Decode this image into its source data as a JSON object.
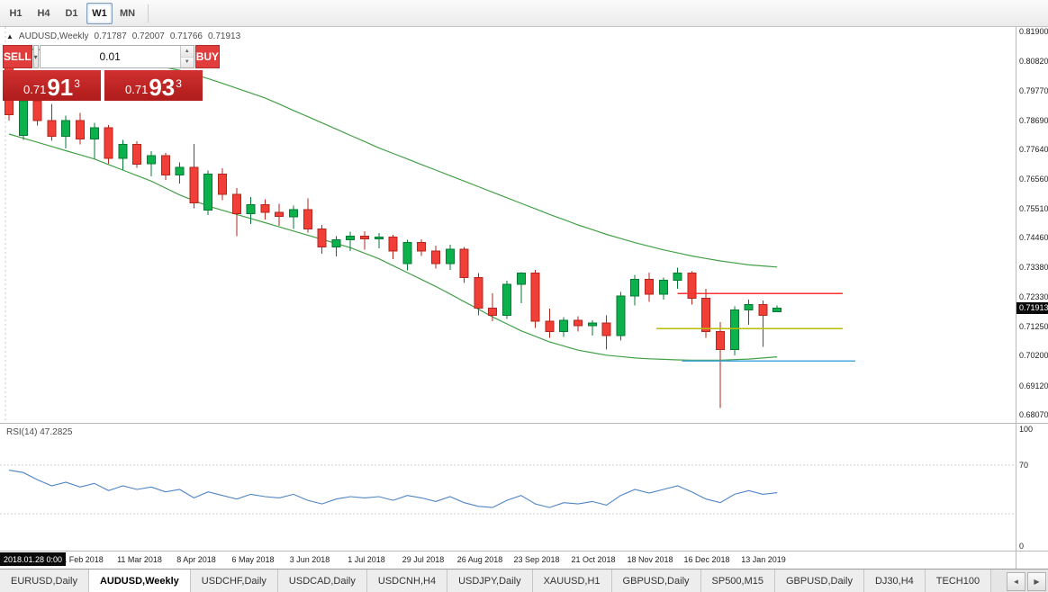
{
  "toolbar": {
    "timeframes": [
      {
        "label": "H1",
        "active": false
      },
      {
        "label": "H4",
        "active": false
      },
      {
        "label": "D1",
        "active": false
      },
      {
        "label": "W1",
        "active": true
      },
      {
        "label": "MN",
        "active": false
      }
    ]
  },
  "chart": {
    "header": {
      "marker": "▲",
      "symbol": "AUDUSD,Weekly",
      "open": "0.71787",
      "high": "0.72007",
      "low": "0.71766",
      "close": "0.71913"
    },
    "price_axis": [
      "0.81900",
      "0.80820",
      "0.79770",
      "0.78690",
      "0.77640",
      "0.76560",
      "0.75510",
      "0.74460",
      "0.73380",
      "0.72330",
      "0.71250",
      "0.70200",
      "0.69120",
      "0.68070"
    ],
    "price_badge": "0.71913",
    "rsi_label": "RSI(14) 47.2825",
    "rsi_axis": [
      "100",
      "70",
      "0"
    ],
    "date_badge": "2018.01.28 0:00",
    "date_axis": [
      "1 Feb 2018",
      "11 Mar 2018",
      "8 Apr 2018",
      "6 May 2018",
      "3 Jun 2018",
      "1 Jul 2018",
      "29 Jul 2018",
      "26 Aug 2018",
      "23 Sep 2018",
      "21 Oct 2018",
      "18 Nov 2018",
      "16 Dec 2018",
      "13 Jan 2019"
    ]
  },
  "trade_panel": {
    "sell_label": "SELL",
    "buy_label": "BUY",
    "lot_value": "0.01",
    "dropdown_glyph": "▾",
    "spin_up": "▲",
    "spin_down": "▼",
    "sell_price": {
      "small": "0.71",
      "big": "91",
      "sup": "3"
    },
    "buy_price": {
      "small": "0.71",
      "big": "93",
      "sup": "3"
    }
  },
  "tabs": {
    "items": [
      {
        "label": "EURUSD,Daily",
        "active": false
      },
      {
        "label": "AUDUSD,Weekly",
        "active": true
      },
      {
        "label": "USDCHF,Daily",
        "active": false
      },
      {
        "label": "USDCAD,Daily",
        "active": false
      },
      {
        "label": "USDCNH,H4",
        "active": false
      },
      {
        "label": "USDJPY,Daily",
        "active": false
      },
      {
        "label": "XAUUSD,H1",
        "active": false
      },
      {
        "label": "GBPUSD,Daily",
        "active": false
      },
      {
        "label": "SP500,M15",
        "active": false
      },
      {
        "label": "GBPUSD,Daily",
        "active": false
      },
      {
        "label": "DJ30,H4",
        "active": false
      },
      {
        "label": "TECH100",
        "active": false
      }
    ],
    "scroll_left": "◄",
    "scroll_right": "▶"
  },
  "colors": {
    "up": "#0cb04c",
    "up_border": "#067a33",
    "down": "#f13e36",
    "down_border": "#b3271f",
    "band": "#43a047",
    "rsi": "#4f84c4",
    "red_line": "#ff3232",
    "yellow_line": "#b8bd00",
    "blue_line": "#49a8e0",
    "badge_bg": "#0a0a0a"
  },
  "chart_data": {
    "type": "candlestick",
    "symbol": "AUDUSD",
    "timeframe": "Weekly",
    "current_price": 0.71913,
    "ohlc_current": {
      "open": 0.71787,
      "high": 0.72007,
      "low": 0.71766,
      "close": 0.71913
    },
    "price_range": {
      "min": 0.6807,
      "max": 0.819
    },
    "axis_ticks": [
      0.819,
      0.8082,
      0.7977,
      0.7869,
      0.7764,
      0.7656,
      0.7551,
      0.7446,
      0.7338,
      0.7233,
      0.7125,
      0.702,
      0.6912,
      0.6807
    ],
    "candles": [
      [
        0.809,
        0.8136,
        0.7868,
        0.789
      ],
      [
        0.7815,
        0.7952,
        0.7798,
        0.794
      ],
      [
        0.794,
        0.7963,
        0.785,
        0.7868
      ],
      [
        0.7868,
        0.7928,
        0.7795,
        0.7812
      ],
      [
        0.7812,
        0.7886,
        0.7768,
        0.7868
      ],
      [
        0.7868,
        0.7897,
        0.7782,
        0.7802
      ],
      [
        0.7802,
        0.786,
        0.773,
        0.7842
      ],
      [
        0.7842,
        0.7853,
        0.7712,
        0.7733
      ],
      [
        0.7733,
        0.7798,
        0.769,
        0.7782
      ],
      [
        0.7782,
        0.7794,
        0.7698,
        0.7712
      ],
      [
        0.7712,
        0.7758,
        0.7668,
        0.7742
      ],
      [
        0.7742,
        0.7752,
        0.7655,
        0.7672
      ],
      [
        0.7672,
        0.7718,
        0.7642,
        0.77
      ],
      [
        0.77,
        0.7784,
        0.7552,
        0.7572
      ],
      [
        0.7545,
        0.7688,
        0.7528,
        0.7676
      ],
      [
        0.7676,
        0.7696,
        0.7582,
        0.7603
      ],
      [
        0.7603,
        0.7625,
        0.7452,
        0.7532
      ],
      [
        0.7532,
        0.7592,
        0.7495,
        0.7565
      ],
      [
        0.7565,
        0.7585,
        0.7512,
        0.7538
      ],
      [
        0.7538,
        0.7568,
        0.7488,
        0.7522
      ],
      [
        0.7522,
        0.7562,
        0.7478,
        0.7548
      ],
      [
        0.7548,
        0.7587,
        0.7465,
        0.7478
      ],
      [
        0.7478,
        0.7492,
        0.7388,
        0.7412
      ],
      [
        0.7412,
        0.7452,
        0.7378,
        0.7438
      ],
      [
        0.7438,
        0.7468,
        0.7398,
        0.7452
      ],
      [
        0.7452,
        0.747,
        0.7402,
        0.7442
      ],
      [
        0.7442,
        0.7462,
        0.7408,
        0.7448
      ],
      [
        0.7448,
        0.7456,
        0.7368,
        0.7398
      ],
      [
        0.7352,
        0.7438,
        0.7328,
        0.7428
      ],
      [
        0.7428,
        0.744,
        0.738,
        0.7398
      ],
      [
        0.7398,
        0.7418,
        0.7335,
        0.7352
      ],
      [
        0.7352,
        0.742,
        0.733,
        0.7405
      ],
      [
        0.7405,
        0.7412,
        0.7282,
        0.7302
      ],
      [
        0.7302,
        0.7318,
        0.7165,
        0.7192
      ],
      [
        0.7192,
        0.7245,
        0.7145,
        0.7165
      ],
      [
        0.7165,
        0.729,
        0.7152,
        0.7278
      ],
      [
        0.7278,
        0.7322,
        0.721,
        0.7318
      ],
      [
        0.7318,
        0.733,
        0.712,
        0.7145
      ],
      [
        0.7145,
        0.719,
        0.7085,
        0.7108
      ],
      [
        0.7108,
        0.716,
        0.7088,
        0.7148
      ],
      [
        0.7148,
        0.7162,
        0.7108,
        0.7128
      ],
      [
        0.7128,
        0.7148,
        0.7092,
        0.7138
      ],
      [
        0.7138,
        0.7165,
        0.7042,
        0.7092
      ],
      [
        0.7092,
        0.725,
        0.7075,
        0.7235
      ],
      [
        0.7235,
        0.7312,
        0.7202,
        0.7296
      ],
      [
        0.7296,
        0.732,
        0.7215,
        0.7242
      ],
      [
        0.7242,
        0.7302,
        0.7222,
        0.7292
      ],
      [
        0.7292,
        0.7338,
        0.7262,
        0.7318
      ],
      [
        0.7318,
        0.7325,
        0.7205,
        0.7228
      ],
      [
        0.7228,
        0.7262,
        0.7085,
        0.7108
      ],
      [
        0.7108,
        0.7142,
        0.6832,
        0.7042
      ],
      [
        0.7042,
        0.7198,
        0.7022,
        0.7185
      ],
      [
        0.7185,
        0.7222,
        0.7132,
        0.7205
      ],
      [
        0.7205,
        0.722,
        0.7052,
        0.7165
      ],
      [
        0.71787,
        0.72007,
        0.71766,
        0.71913
      ]
    ],
    "bb_upper": [
      0.813,
      0.8128,
      0.8125,
      0.812,
      0.8115,
      0.8108,
      0.81,
      0.8093,
      0.8085,
      0.8078,
      0.807,
      0.806,
      0.805,
      0.8035,
      0.802,
      0.8003,
      0.7985,
      0.7968,
      0.795,
      0.7928,
      0.7905,
      0.7883,
      0.786,
      0.7838,
      0.7815,
      0.7793,
      0.777,
      0.775,
      0.773,
      0.771,
      0.769,
      0.767,
      0.765,
      0.763,
      0.761,
      0.759,
      0.757,
      0.755,
      0.753,
      0.7511,
      0.7492,
      0.7475,
      0.7458,
      0.7443,
      0.7428,
      0.7415,
      0.7402,
      0.7391,
      0.738,
      0.7371,
      0.7362,
      0.7355,
      0.7348,
      0.7344,
      0.734
    ],
    "bb_lower": [
      0.782,
      0.7805,
      0.779,
      0.7775,
      0.776,
      0.7745,
      0.773,
      0.771,
      0.769,
      0.767,
      0.765,
      0.7625,
      0.76,
      0.758,
      0.756,
      0.7545,
      0.753,
      0.7515,
      0.75,
      0.7485,
      0.747,
      0.7455,
      0.744,
      0.7425,
      0.741,
      0.739,
      0.737,
      0.7345,
      0.732,
      0.7295,
      0.727,
      0.7243,
      0.7215,
      0.7188,
      0.716,
      0.7135,
      0.711,
      0.709,
      0.707,
      0.7055,
      0.704,
      0.7031,
      0.7022,
      0.7017,
      0.7012,
      0.7009,
      0.7007,
      0.7005,
      0.7004,
      0.7004,
      0.7004,
      0.7006,
      0.7008,
      0.7012,
      0.7016
    ],
    "rsi_period": 14,
    "rsi_current": 47.2825,
    "rsi_levels": [
      70,
      30
    ],
    "rsi_values": [
      66,
      64,
      58,
      53,
      56,
      52,
      55,
      49,
      53,
      50,
      52,
      48,
      50,
      43,
      48,
      45,
      42,
      46,
      44,
      43,
      46,
      41,
      38,
      42,
      44,
      43,
      44,
      41,
      45,
      43,
      40,
      44,
      39,
      36,
      35,
      41,
      45,
      38,
      35,
      39,
      38,
      40,
      37,
      45,
      50,
      47,
      50,
      53,
      48,
      42,
      39,
      46,
      49,
      46,
      47.28
    ],
    "hlines": [
      {
        "name": "resistance-red",
        "color": "#ff3232",
        "price": 0.7245,
        "from_index": 47.0,
        "to_index": 58.6
      },
      {
        "name": "support-yellow",
        "color": "#b8bd00",
        "price": 0.7118,
        "from_index": 45.5,
        "to_index": 58.6
      },
      {
        "name": "support-blue",
        "color": "#49a8e0",
        "price": 0.7001,
        "from_index": 47.3,
        "to_index": 59.5
      }
    ],
    "vline_index": -0.25
  }
}
